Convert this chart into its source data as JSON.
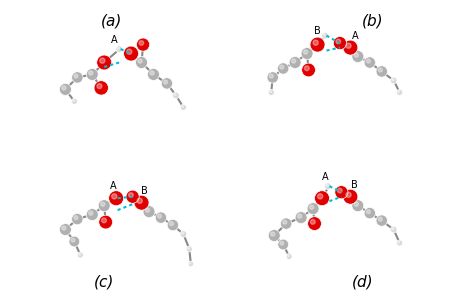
{
  "title": "",
  "background_color": "#ffffff",
  "panels": [
    "(a)",
    "(b)",
    "(c)",
    "(d)"
  ],
  "panel_label_fontsize": 11,
  "atom_colors": {
    "O": "#e00000",
    "C": "#b0b0b0",
    "H": "#d8d8d8"
  },
  "hbond_color": "#00bcd4",
  "hbond_linewidth": 1.5
}
